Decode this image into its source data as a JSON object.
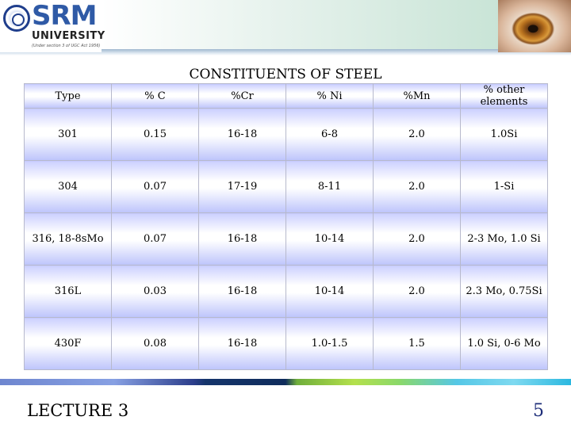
{
  "logo": {
    "name": "SRM",
    "subtitle": "UNIVERSITY",
    "tagline": "(Under section 3 of UGC Act 1956)"
  },
  "title": "CONSTITUENTS  OF STEEL",
  "table": {
    "headers": [
      "Type",
      "% C",
      "%Cr",
      "% Ni",
      "%Mn",
      "% other elements"
    ],
    "rows": [
      [
        "301",
        "0.15",
        "16-18",
        "6-8",
        "2.0",
        "1.0Si"
      ],
      [
        "304",
        "0.07",
        "17-19",
        "8-11",
        "2.0",
        "1-Si"
      ],
      [
        "316, 18-8sMo",
        "0.07",
        "16-18",
        "10-14",
        "2.0",
        "2-3 Mo, 1.0 Si"
      ],
      [
        "316L",
        "0.03",
        "16-18",
        "10-14",
        "2.0",
        "2.3 Mo, 0.75Si"
      ],
      [
        "430F",
        "0.08",
        "16-18",
        "1.0-1.5",
        "1.5",
        "1.0 Si, 0-6 Mo"
      ]
    ]
  },
  "footer": {
    "lecture": "LECTURE 3",
    "page": "5"
  },
  "colors": {
    "brand_blue": "#2f5aa6",
    "cell_gradient_top": "#ccd0ff",
    "cell_gradient_bottom": "#bdc4fb",
    "page_number": "#1f2f7a"
  }
}
